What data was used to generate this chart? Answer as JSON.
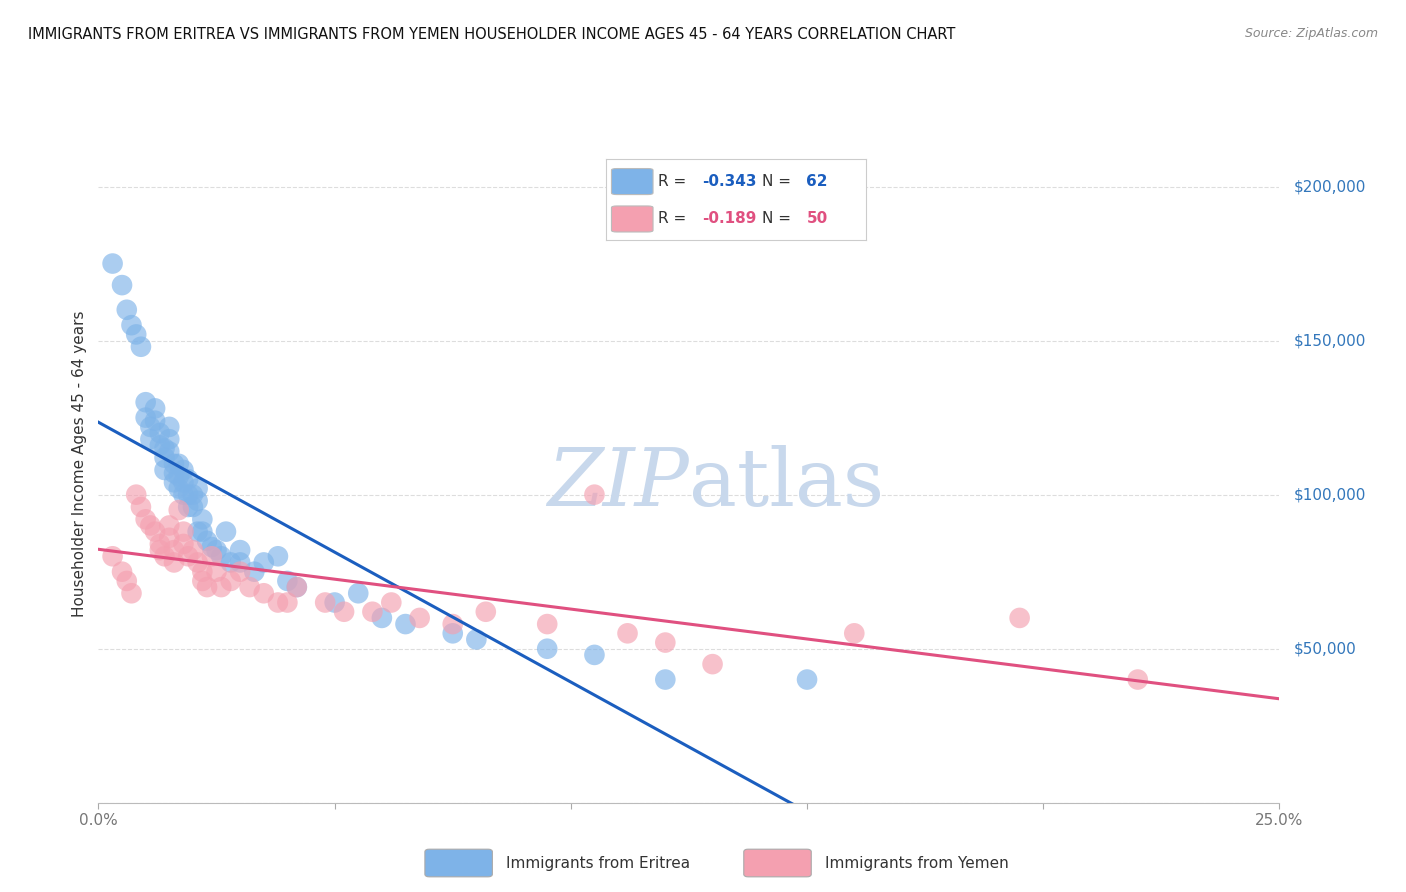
{
  "title": "IMMIGRANTS FROM ERITREA VS IMMIGRANTS FROM YEMEN HOUSEHOLDER INCOME AGES 45 - 64 YEARS CORRELATION CHART",
  "source": "Source: ZipAtlas.com",
  "ylabel": "Householder Income Ages 45 - 64 years",
  "xlim": [
    0.0,
    0.25
  ],
  "ylim": [
    0,
    220000
  ],
  "yticks": [
    0,
    50000,
    100000,
    150000,
    200000
  ],
  "ytick_labels": [
    "",
    "$50,000",
    "$100,000",
    "$150,000",
    "$200,000"
  ],
  "xticks": [
    0.0,
    0.05,
    0.1,
    0.15,
    0.2,
    0.25
  ],
  "xtick_labels": [
    "0.0%",
    "",
    "",
    "",
    "",
    "25.0%"
  ],
  "eritrea_color": "#7EB3E8",
  "yemen_color": "#F4A0B0",
  "eritrea_line_color": "#1B5EBF",
  "yemen_line_color": "#E05080",
  "eritrea_R": -0.343,
  "eritrea_N": 62,
  "yemen_R": -0.189,
  "yemen_N": 50,
  "eritrea_x": [
    0.003,
    0.005,
    0.006,
    0.007,
    0.008,
    0.009,
    0.01,
    0.01,
    0.011,
    0.011,
    0.012,
    0.012,
    0.013,
    0.013,
    0.014,
    0.014,
    0.014,
    0.015,
    0.015,
    0.015,
    0.016,
    0.016,
    0.016,
    0.017,
    0.017,
    0.017,
    0.018,
    0.018,
    0.018,
    0.019,
    0.019,
    0.019,
    0.02,
    0.02,
    0.021,
    0.021,
    0.021,
    0.022,
    0.022,
    0.023,
    0.024,
    0.025,
    0.026,
    0.027,
    0.028,
    0.03,
    0.03,
    0.033,
    0.035,
    0.038,
    0.04,
    0.042,
    0.05,
    0.055,
    0.06,
    0.065,
    0.075,
    0.08,
    0.095,
    0.105,
    0.12,
    0.15
  ],
  "eritrea_y": [
    175000,
    168000,
    160000,
    155000,
    152000,
    148000,
    130000,
    125000,
    122000,
    118000,
    128000,
    124000,
    120000,
    116000,
    115000,
    112000,
    108000,
    122000,
    118000,
    114000,
    110000,
    107000,
    104000,
    110000,
    106000,
    102000,
    108000,
    104000,
    100000,
    105000,
    100000,
    96000,
    100000,
    96000,
    102000,
    98000,
    88000,
    92000,
    88000,
    85000,
    83000,
    82000,
    80000,
    88000,
    78000,
    82000,
    78000,
    75000,
    78000,
    80000,
    72000,
    70000,
    65000,
    68000,
    60000,
    58000,
    55000,
    53000,
    50000,
    48000,
    40000,
    40000
  ],
  "yemen_x": [
    0.003,
    0.005,
    0.006,
    0.007,
    0.008,
    0.009,
    0.01,
    0.011,
    0.012,
    0.013,
    0.013,
    0.014,
    0.015,
    0.015,
    0.016,
    0.016,
    0.017,
    0.018,
    0.018,
    0.019,
    0.02,
    0.021,
    0.022,
    0.022,
    0.023,
    0.024,
    0.025,
    0.026,
    0.028,
    0.03,
    0.032,
    0.035,
    0.038,
    0.04,
    0.042,
    0.048,
    0.052,
    0.058,
    0.062,
    0.068,
    0.075,
    0.082,
    0.095,
    0.105,
    0.112,
    0.12,
    0.13,
    0.16,
    0.195,
    0.22
  ],
  "yemen_y": [
    80000,
    75000,
    72000,
    68000,
    100000,
    96000,
    92000,
    90000,
    88000,
    84000,
    82000,
    80000,
    90000,
    86000,
    82000,
    78000,
    95000,
    88000,
    84000,
    80000,
    82000,
    78000,
    75000,
    72000,
    70000,
    80000,
    75000,
    70000,
    72000,
    75000,
    70000,
    68000,
    65000,
    65000,
    70000,
    65000,
    62000,
    62000,
    65000,
    60000,
    58000,
    62000,
    58000,
    100000,
    55000,
    52000,
    45000,
    55000,
    60000,
    40000
  ],
  "background_color": "#FFFFFF",
  "grid_color": "#DDDDDD",
  "watermark_color": "#C8D8EC",
  "right_label_color": "#3377BB",
  "title_color": "#111111",
  "source_color": "#888888",
  "axis_label_color": "#333333",
  "tick_label_color": "#777777"
}
